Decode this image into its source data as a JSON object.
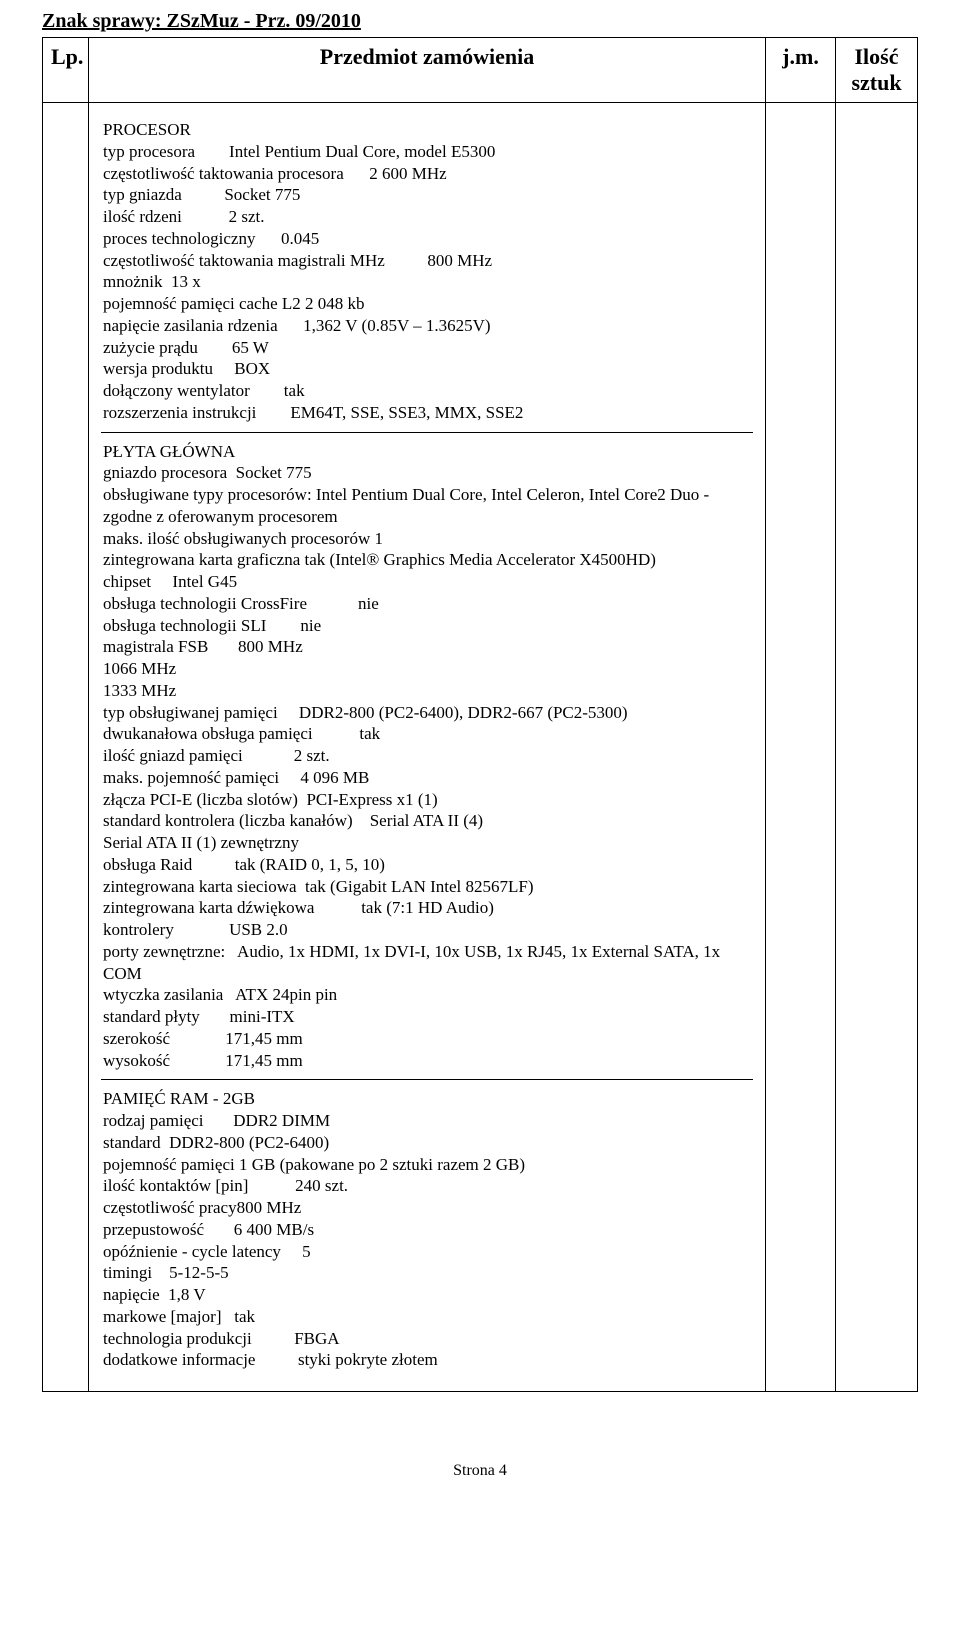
{
  "case_number": "Znak sprawy: ZSzMuz - Prz. 09/2010",
  "headers": {
    "lp": "Lp.",
    "subject": "Przedmiot zamówienia",
    "jm": "j.m.",
    "qty_line1": "Ilość",
    "qty_line2": "sztuk"
  },
  "processor": {
    "title": "PROCESOR",
    "l1": "typ procesora        Intel Pentium Dual Core, model E5300",
    "l2": "częstotliwość taktowania procesora      2 600 MHz",
    "l3": "typ gniazda          Socket 775",
    "l4": "ilość rdzeni           2 szt.",
    "l5": "proces technologiczny      0.045",
    "l6": "częstotliwość taktowania magistrali MHz          800 MHz",
    "l7": "mnożnik  13 x",
    "l8": "pojemność pamięci cache L2 2 048 kb",
    "l9": "napięcie zasilania rdzenia      1,362 V (0.85V – 1.3625V)",
    "l10": "zużycie prądu        65 W",
    "l11": "wersja produktu     BOX",
    "l12": "dołączony wentylator        tak",
    "l13": "rozszerzenia instrukcji        EM64T, SSE, SSE3, MMX, SSE2"
  },
  "mobo": {
    "title": "PŁYTA GŁÓWNA",
    "l1": "gniazdo procesora  Socket 775",
    "l2": "obsługiwane typy procesorów: Intel Pentium Dual Core, Intel Celeron, Intel Core2 Duo - zgodne z oferowanym procesorem",
    "l3": "maks. ilość obsługiwanych procesorów 1",
    "l4": "zintegrowana karta graficzna tak (Intel® Graphics Media Accelerator X4500HD)",
    "l5": "chipset     Intel G45",
    "l6": "obsługa technologii CrossFire            nie",
    "l7": "obsługa technologii SLI        nie",
    "l8": "magistrala FSB       800 MHz",
    "l9": "1066 MHz",
    "l10": "1333 MHz",
    "l11": "typ obsługiwanej pamięci     DDR2-800 (PC2-6400), DDR2-667 (PC2-5300)",
    "l12": "dwukanałowa obsługa pamięci           tak",
    "l13": "ilość gniazd pamięci            2 szt.",
    "l14": "maks. pojemność pamięci     4 096 MB",
    "l15": "złącza PCI-E (liczba slotów)  PCI-Express x1 (1)",
    "l16": "standard kontrolera (liczba kanałów)    Serial ATA II (4)",
    "l17": "Serial ATA II (1) zewnętrzny",
    "l18": "obsługa Raid          tak (RAID 0, 1, 5, 10)",
    "l19": "zintegrowana karta sieciowa  tak (Gigabit LAN Intel 82567LF)",
    "l20": "zintegrowana karta dźwiękowa           tak (7:1 HD Audio)",
    "l21": "kontrolery             USB 2.0",
    "l22": "porty zewnętrzne:   Audio, 1x HDMI, 1x DVI-I, 10x USB, 1x RJ45, 1x External SATA, 1x COM",
    "l23": "wtyczka zasilania   ATX 24pin pin",
    "l24": "standard płyty       mini-ITX",
    "l25": "szerokość             171,45 mm",
    "l26": "wysokość             171,45 mm"
  },
  "ram": {
    "title": "PAMIĘĆ RAM - 2GB",
    "l1": "rodzaj pamięci       DDR2 DIMM",
    "l2": "standard  DDR2-800 (PC2-6400)",
    "l3": "pojemność pamięci 1 GB (pakowane po 2 sztuki razem 2 GB)",
    "l4": "ilość kontaktów [pin]           240 szt.",
    "l5": "częstotliwość pracy800 MHz",
    "l6": "przepustowość       6 400 MB/s",
    "l7": "opóźnienie - cycle latency     5",
    "l8": "timingi    5-12-5-5",
    "l9": "napięcie  1,8 V",
    "l10": "markowe [major]   tak",
    "l11": "technologia produkcji          FBGA",
    "l12": "dodatkowe informacje          styki pokryte złotem"
  },
  "footer": "Strona 4"
}
